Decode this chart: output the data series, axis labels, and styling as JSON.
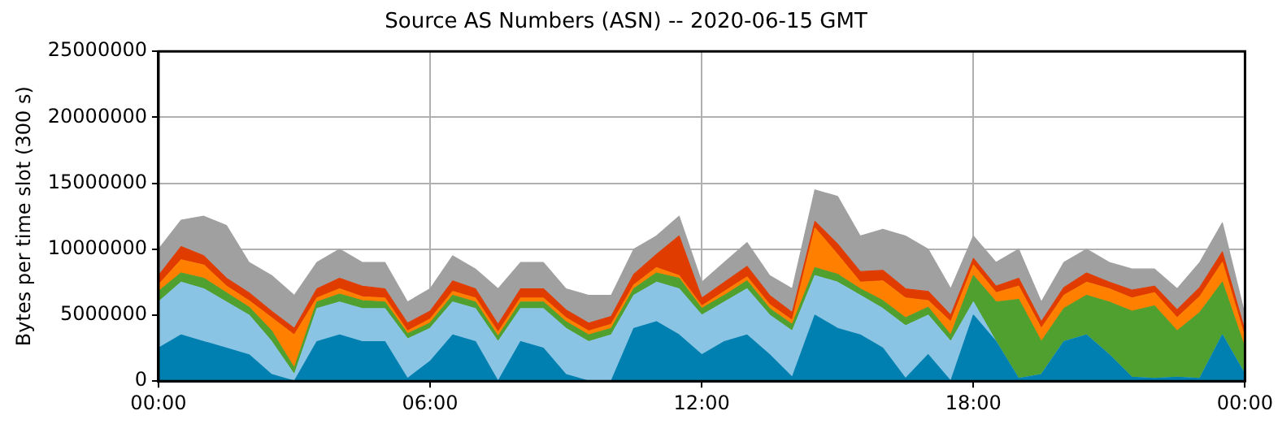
{
  "chart_data": {
    "type": "area",
    "stacked": true,
    "title": "Source AS Numbers (ASN) -- 2020-06-15 GMT",
    "ylabel": "Bytes per time slot (300 s)",
    "x": [
      0,
      0.5,
      1,
      1.5,
      2,
      2.5,
      3,
      3.5,
      4,
      4.5,
      5,
      5.5,
      6,
      6.5,
      7,
      7.5,
      8,
      8.5,
      9,
      9.5,
      10,
      10.5,
      11,
      11.5,
      12,
      12.5,
      13,
      13.5,
      14,
      14.5,
      15,
      15.5,
      16,
      16.5,
      17,
      17.5,
      18,
      18.5,
      19,
      19.5,
      20,
      20.5,
      21,
      21.5,
      22,
      22.5,
      23,
      23.5,
      24
    ],
    "xlim": [
      0,
      24
    ],
    "xticks": [
      {
        "value": 0,
        "label": "00:00"
      },
      {
        "value": 6,
        "label": "06:00"
      },
      {
        "value": 12,
        "label": "12:00"
      },
      {
        "value": 18,
        "label": "18:00"
      },
      {
        "value": 24,
        "label": "00:00"
      }
    ],
    "ylim": [
      0,
      25000000
    ],
    "yticks": [
      0,
      5000000,
      10000000,
      15000000,
      20000000,
      25000000
    ],
    "grid": true,
    "series": [
      {
        "color": "#0080b0",
        "values": [
          2500000,
          3500000,
          3000000,
          2500000,
          2000000,
          500000,
          0,
          3000000,
          3500000,
          3000000,
          3000000,
          200000,
          1500000,
          3500000,
          3000000,
          0,
          3000000,
          2500000,
          500000,
          0,
          0,
          4000000,
          4500000,
          3500000,
          2000000,
          3000000,
          3500000,
          2000000,
          300000,
          5000000,
          4000000,
          3500000,
          2500000,
          200000,
          2000000,
          0,
          5000000,
          3000000,
          200000,
          500000,
          3000000,
          3500000,
          2000000,
          300000,
          200000,
          300000,
          200000,
          3500000,
          500000
        ]
      },
      {
        "color": "#8ac4e4",
        "values": [
          3500000,
          4000000,
          4000000,
          3500000,
          3000000,
          2500000,
          500000,
          2500000,
          2500000,
          2500000,
          2500000,
          3000000,
          2500000,
          2500000,
          2500000,
          3000000,
          2500000,
          3000000,
          3500000,
          3000000,
          3500000,
          2500000,
          3000000,
          3500000,
          3000000,
          3000000,
          3500000,
          3000000,
          3500000,
          3000000,
          3500000,
          3000000,
          3000000,
          4000000,
          3000000,
          3000000,
          1000000,
          0,
          0,
          0,
          0,
          0,
          0,
          0,
          0,
          0,
          0,
          0,
          0
        ]
      },
      {
        "color": "#50a030",
        "values": [
          800000,
          700000,
          800000,
          700000,
          600000,
          800000,
          500000,
          500000,
          600000,
          600000,
          500000,
          400000,
          400000,
          500000,
          500000,
          400000,
          500000,
          500000,
          500000,
          500000,
          500000,
          500000,
          700000,
          800000,
          500000,
          500000,
          600000,
          500000,
          500000,
          600000,
          600000,
          500000,
          600000,
          600000,
          600000,
          500000,
          2000000,
          3000000,
          6000000,
          2500000,
          2500000,
          3000000,
          4000000,
          5000000,
          5500000,
          3500000,
          5000000,
          4000000,
          2000000
        ]
      },
      {
        "color": "#ff8000",
        "values": [
          500000,
          1000000,
          1000000,
          500000,
          500000,
          1000000,
          2500000,
          300000,
          400000,
          300000,
          300000,
          200000,
          300000,
          300000,
          300000,
          300000,
          300000,
          300000,
          300000,
          300000,
          300000,
          300000,
          400000,
          200000,
          200000,
          300000,
          300000,
          300000,
          300000,
          3000000,
          1500000,
          500000,
          1500000,
          1500000,
          500000,
          1000000,
          800000,
          700000,
          1000000,
          1000000,
          1000000,
          1000000,
          1000000,
          1000000,
          1000000,
          1000000,
          1200000,
          1500000,
          800000
        ]
      },
      {
        "color": "#e03c00",
        "values": [
          700000,
          1000000,
          700000,
          600000,
          600000,
          500000,
          500000,
          700000,
          800000,
          800000,
          700000,
          600000,
          600000,
          800000,
          700000,
          600000,
          700000,
          700000,
          600000,
          600000,
          600000,
          800000,
          1000000,
          3000000,
          600000,
          700000,
          800000,
          700000,
          600000,
          500000,
          800000,
          800000,
          800000,
          700000,
          700000,
          500000,
          500000,
          500000,
          600000,
          500000,
          600000,
          700000,
          500000,
          600000,
          500000,
          600000,
          700000,
          800000,
          500000
        ]
      },
      {
        "color": "#a0a0a0",
        "values": [
          2000000,
          2000000,
          3000000,
          4000000,
          2300000,
          2700000,
          2500000,
          2000000,
          2200000,
          1800000,
          2000000,
          1600000,
          1700000,
          1900000,
          1500000,
          2700000,
          2000000,
          2000000,
          1600000,
          2100000,
          1600000,
          1900000,
          1400000,
          1500000,
          1200000,
          1500000,
          1800000,
          1500000,
          1800000,
          2400000,
          3600000,
          2700000,
          3100000,
          4000000,
          3200000,
          2000000,
          1700000,
          1800000,
          2200000,
          1500000,
          1900000,
          1800000,
          1500000,
          1600000,
          1300000,
          1600000,
          1900000,
          2200000,
          1200000
        ]
      }
    ]
  }
}
